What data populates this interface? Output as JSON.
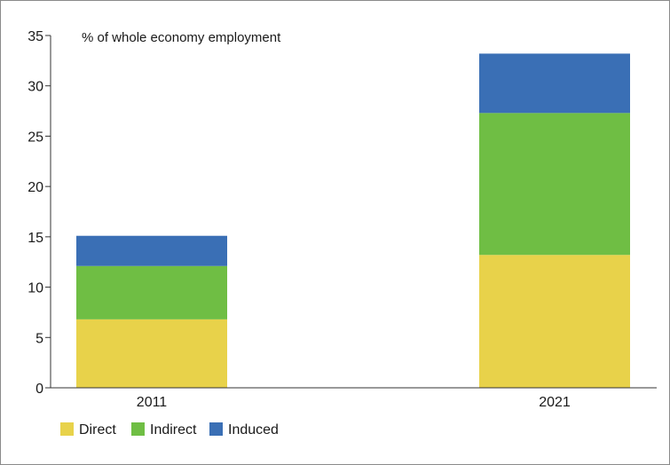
{
  "chart_data": {
    "type": "bar",
    "stacked": true,
    "ylabel": "% of whole economy employment",
    "xlabel": "",
    "ylim": [
      0,
      35
    ],
    "yticks": [
      0,
      5,
      10,
      15,
      20,
      25,
      30,
      35
    ],
    "categories": [
      "2011",
      "2021"
    ],
    "series": [
      {
        "name": "Direct",
        "color": "#e8d24a",
        "values": [
          6.8,
          13.2
        ]
      },
      {
        "name": "Indirect",
        "color": "#6fbe44",
        "values": [
          5.3,
          14.1
        ]
      },
      {
        "name": "Induced",
        "color": "#3a6fb5",
        "values": [
          3.0,
          5.9
        ]
      }
    ],
    "legend_position": "bottom-left",
    "grid": false
  }
}
